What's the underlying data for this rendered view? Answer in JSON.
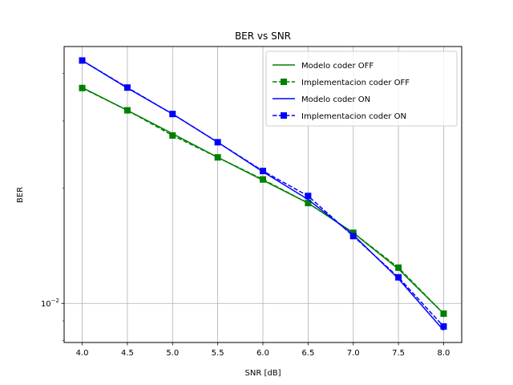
{
  "chart_data": {
    "type": "line",
    "title": "BER vs SNR",
    "xlabel": "SNR [dB]",
    "ylabel": "BER",
    "x": [
      4.0,
      4.5,
      5.0,
      5.5,
      6.0,
      6.5,
      7.0,
      7.5,
      8.0
    ],
    "x_tick_labels": [
      "4.0",
      "4.5",
      "5.0",
      "5.5",
      "6.0",
      "6.5",
      "7.0",
      "7.5",
      "8.0"
    ],
    "xlim": [
      3.8,
      8.2
    ],
    "yscale": "log",
    "ylim": [
      0.0079,
      0.047
    ],
    "y_tick_major": [
      0.01
    ],
    "y_tick_labels": [
      "10^-2"
    ],
    "grid": true,
    "legend_position": "top-right",
    "series": [
      {
        "name": "Modelo coder OFF",
        "color": "#008000",
        "linestyle": "solid",
        "marker": "none",
        "values": [
          0.0367,
          0.032,
          0.0278,
          0.0241,
          0.021,
          0.0183,
          0.0153,
          0.0123,
          0.0094
        ]
      },
      {
        "name": "Implementacion coder OFF",
        "color": "#008000",
        "linestyle": "dashed",
        "marker": "square",
        "values": [
          0.0366,
          0.032,
          0.0275,
          0.0241,
          0.0211,
          0.0183,
          0.0153,
          0.0124,
          0.0094
        ]
      },
      {
        "name": "Modelo coder ON",
        "color": "#0000ff",
        "linestyle": "solid",
        "marker": "none",
        "values": [
          0.0432,
          0.0366,
          0.0313,
          0.0264,
          0.0221,
          0.0187,
          0.0151,
          0.0116,
          0.0085
        ]
      },
      {
        "name": "Implementacion coder ON",
        "color": "#0000ff",
        "linestyle": "dashed",
        "marker": "square",
        "values": [
          0.0432,
          0.0367,
          0.0313,
          0.0264,
          0.0222,
          0.0191,
          0.015,
          0.0117,
          0.0087
        ]
      }
    ]
  }
}
